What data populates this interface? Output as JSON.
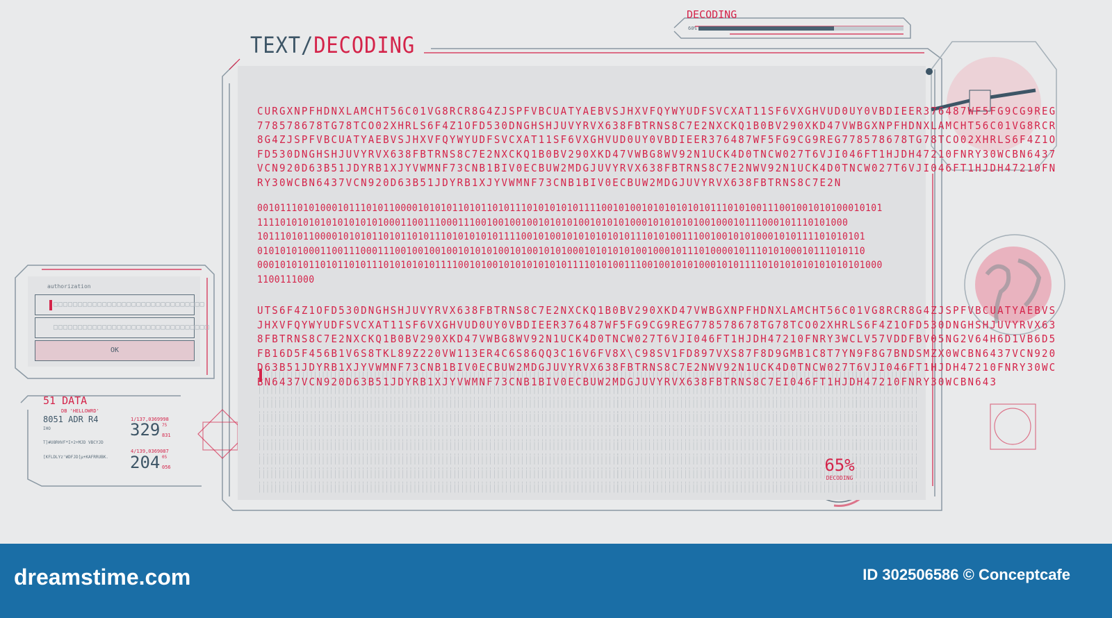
{
  "header": {
    "title_part1": "TEXT/",
    "title_part2": "DECODING"
  },
  "top_progress": {
    "label": "DECODING",
    "percent_text": "60%",
    "progress": 0.6
  },
  "main_text": {
    "block1": [
      "CURGXNPFHDNXLAMCHT56C01VG8RCR8G4ZJSPFVBCUATYAEBVSJHXVFQYWYUDFSVCXAT11SF6VXGHVUD0UY0VBDIEER376487WF5FG9CG9REG",
      "778578678TG78TCO02XHRLS6F4Z1OFD530DNGHSHJUVYRVX638FBTRNS8C7E2NXCKQ1B0BV290XKD47VWBGXNPFHDNXLAMCHT56C01VG8RCR",
      "8G4ZJSPFVBCUATYAEBVSJHXVFQYWYUDFSVCXAT11SF6VXGHVUD0UY0VBDIEER376487WF5FG9CG9REG778578678TG78TCO02XHRLS6F4Z1O",
      "FD530DNGHSHJUVYRVX638FBTRNS8C7E2NXCKQ1B0BV290XKD47VWBG8WV92N1UCK4D0TNCW027T6VJI046FT1HJDH47210FNRY30WCBN6437",
      "VCN920D63B51JDYRB1XJYVWMNF73CNB1BIV0ECBUW2MDGJUVYRVX638FBTRNS8C7E2NWV92N1UCK4D0TNCW027T6VJI046FT1HJDH47210FN",
      "RY30WCBN6437VCN920D63B51JDYRB1XJYVWMNF73CNB1BIV0ECBUW2MDGJUVYRVX638FBTRNS8C7E2N"
    ],
    "block2": [
      "0010111010100010111010110000101010110101101011101010101011110010100101010101010111010100111001001010100010101",
      "1111010101010101010101000110011100011100100100100101010100101010100010101010100100010111000101110101000",
      "1011101011000010101011010110101110101010101111001010010101010101011101010011100100101010001010111101010101",
      "0101010100011001110001110010010010010101010010100101010001010101010010001011101000010111010100010111010110",
      "0001010101101011010111010101010111100101001010101010101111010100111001001010100010101111010101010101010101000",
      "1100111000"
    ],
    "block3": [
      "UTS6F4Z1OFD530DNGHSHJUVYRVX638FBTRNS8C7E2NXCKQ1B0BV290XKD47VWBGXNPFHDNXLAMCHT56C01VG8RCR8G4ZJSPFVBCUATYAEBVS",
      "JHXVFQYWYUDFSVCXAT11SF6VXGHVUD0UY0VBDIEER376487WF5FG9CG9REG778578678TG78TCO02XHRLS6F4Z1OFD530DNGHSHJUVYRVX63",
      "8FBTRNS8C7E2NXCKQ1B0BV290XKD47VWBG8WV92N1UCK4D0TNCW027T6VJI046FT1HJDH47210FNRY3WCLV57VDDFBV05NG2V64H6D1VB6D5",
      "FB16D5F456B1V6S8TKL89Z220VW113ER4C6S86QQ3C16V6FV8X\\C98SV1FD897VXS87F8D9GMB1C8T7YN9F8G7BNDSMZX0WCBN6437VCN920",
      "D63B51JDYRB1XJYVWMNF73CNB1BIV0ECBUW2MDGJUVYRVX638FBTRNS8C7E2NWV92N1UCK4D0TNCW027T6VJI046FT1HJDH47210FNRY30WC",
      "BN6437VCN920D63B51JDYRB1XJYVWMNF73CNB1BIV0ECBUW2MDGJUVYRVX638FBTRNS8C7EI046FT1HJDH47210FNRY30WCBN643"
    ]
  },
  "auth": {
    "label": "authorization",
    "field1": "□□□□□□□□□□□□□□□□□□□□□□□□□□□□□□□",
    "field2": "□□□□□□□□□□□□□□□□□□□□□□□□□□□□□□□□",
    "ok_label": "OK"
  },
  "data_panel": {
    "num": "51",
    "title": "DATA",
    "db": "DB 'HELLOWRD'",
    "adr": "8051 ADR R4",
    "line1": "IHO",
    "line2": "T]#U8RHVF*I+2+MJD VBCYJD",
    "line3": "[KFLDLYz'WDFJD[µ+KAFRRUBK.",
    "stat1": {
      "label": "1/137,0369998",
      "value": "329",
      "sup": "75",
      "sub": "831"
    },
    "stat2": {
      "label": "4/139,0369087",
      "value": "204",
      "sup": "05",
      "sub": "056"
    }
  },
  "gauge": {
    "value": "65%",
    "label": "DECODING",
    "progress": 0.65
  },
  "footer": {
    "brand": "dreamstime.com",
    "id_credit": "ID 302506586 © Conceptcafe"
  },
  "colors": {
    "accent": "#d4244a",
    "steel": "#3d5566",
    "bg": "#e9eaeb",
    "footer": "#1a6ea6"
  },
  "icons": [
    "satellite-icon",
    "globe-icon",
    "laptop-icon",
    "crosshair-icon"
  ]
}
